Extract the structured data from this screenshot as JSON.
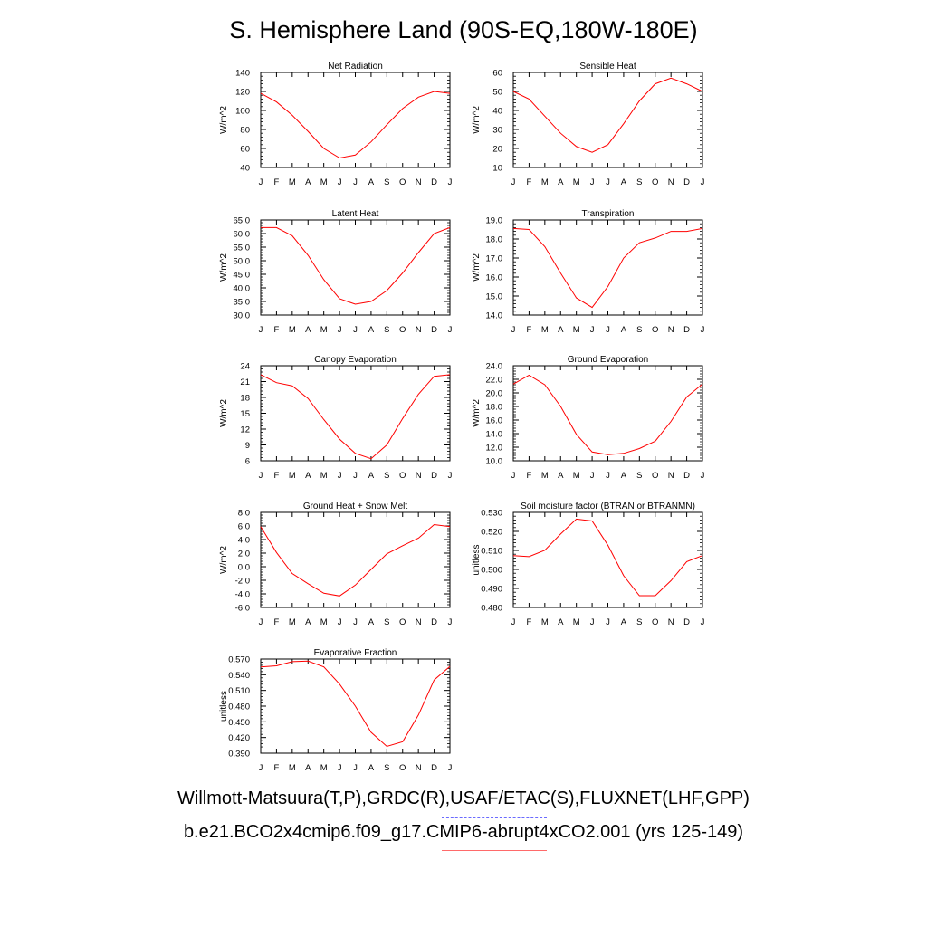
{
  "title": "S. Hemisphere Land (90S-EQ,180W-180E)",
  "legend": {
    "obs_label": "Willmott-Matsuura(T,P),GRDC(R),USAF/ETAC(S),FLUXNET(LHF,GPP)",
    "model_label": "b.e21.BCO2x4cmip6.f09_g17.CMIP6-abrupt4xCO2.001 (yrs 125-149)",
    "obs_color": "#6a6aff",
    "model_color": "#ff0000"
  },
  "chart_data": [
    {
      "type": "line",
      "title": "Net Radiation",
      "ylabel": "W/m^2",
      "categories": [
        "J",
        "F",
        "M",
        "A",
        "M",
        "J",
        "J",
        "A",
        "S",
        "O",
        "N",
        "D",
        "J"
      ],
      "ylim": [
        40,
        140
      ],
      "yticks": [
        "40",
        "60",
        "80",
        "100",
        "120",
        "140"
      ],
      "series": [
        {
          "name": "model",
          "values": [
            118,
            109,
            95,
            78,
            60,
            50,
            53,
            67,
            85,
            102,
            114,
            120,
            118
          ]
        }
      ]
    },
    {
      "type": "line",
      "title": "Sensible Heat",
      "ylabel": "W/m^2",
      "categories": [
        "J",
        "F",
        "M",
        "A",
        "M",
        "J",
        "J",
        "A",
        "S",
        "O",
        "N",
        "D",
        "J"
      ],
      "ylim": [
        10,
        60
      ],
      "yticks": [
        "10",
        "20",
        "30",
        "40",
        "50",
        "60"
      ],
      "series": [
        {
          "name": "model",
          "values": [
            50,
            46,
            37,
            28,
            21,
            18,
            22,
            33,
            45,
            54,
            57,
            54,
            50
          ]
        }
      ]
    },
    {
      "type": "line",
      "title": "Latent Heat",
      "ylabel": "W/m^2",
      "categories": [
        "J",
        "F",
        "M",
        "A",
        "M",
        "J",
        "J",
        "A",
        "S",
        "O",
        "N",
        "D",
        "J"
      ],
      "ylim": [
        30,
        65
      ],
      "yticks": [
        "30.0",
        "35.0",
        "40.0",
        "45.0",
        "50.0",
        "55.0",
        "60.0",
        "65.0"
      ],
      "series": [
        {
          "name": "model",
          "values": [
            62.2,
            62.2,
            59.2,
            52,
            43,
            36,
            34,
            35,
            39,
            45.5,
            53,
            60,
            62.2
          ]
        }
      ]
    },
    {
      "type": "line",
      "title": "Transpiration",
      "ylabel": "W/m^2",
      "categories": [
        "J",
        "F",
        "M",
        "A",
        "M",
        "J",
        "J",
        "A",
        "S",
        "O",
        "N",
        "D",
        "J"
      ],
      "ylim": [
        14,
        19
      ],
      "yticks": [
        "14.0",
        "15.0",
        "16.0",
        "17.0",
        "18.0",
        "19.0"
      ],
      "series": [
        {
          "name": "model",
          "values": [
            18.55,
            18.5,
            17.6,
            16.2,
            14.9,
            14.4,
            15.5,
            17.0,
            17.8,
            18.05,
            18.4,
            18.4,
            18.55
          ]
        }
      ]
    },
    {
      "type": "line",
      "title": "Canopy Evaporation",
      "ylabel": "W/m^2",
      "categories": [
        "J",
        "F",
        "M",
        "A",
        "M",
        "J",
        "J",
        "A",
        "S",
        "O",
        "N",
        "D",
        "J"
      ],
      "ylim": [
        6,
        24
      ],
      "yticks": [
        "6",
        "9",
        "12",
        "15",
        "18",
        "21",
        "24"
      ],
      "series": [
        {
          "name": "model",
          "values": [
            22.3,
            20.8,
            20.2,
            17.8,
            13.8,
            10.1,
            7.4,
            6.4,
            9.0,
            14.0,
            18.6,
            22.0,
            22.3
          ]
        }
      ]
    },
    {
      "type": "line",
      "title": "Ground Evaporation",
      "ylabel": "W/m^2",
      "categories": [
        "J",
        "F",
        "M",
        "A",
        "M",
        "J",
        "J",
        "A",
        "S",
        "O",
        "N",
        "D",
        "J"
      ],
      "ylim": [
        10,
        24
      ],
      "yticks": [
        "10.0",
        "12.0",
        "14.0",
        "16.0",
        "18.0",
        "20.0",
        "22.0",
        "24.0"
      ],
      "series": [
        {
          "name": "model",
          "values": [
            21.3,
            22.6,
            21.2,
            18.0,
            13.9,
            11.3,
            10.9,
            11.1,
            11.8,
            12.9,
            15.8,
            19.4,
            21.3
          ]
        }
      ]
    },
    {
      "type": "line",
      "title": "Ground Heat + Snow Melt",
      "ylabel": "W/m^2",
      "categories": [
        "J",
        "F",
        "M",
        "A",
        "M",
        "J",
        "J",
        "A",
        "S",
        "O",
        "N",
        "D",
        "J"
      ],
      "ylim": [
        -6,
        8
      ],
      "yticks": [
        "-6.0",
        "-4.0",
        "-2.0",
        "0.0",
        "2.0",
        "4.0",
        "6.0",
        "8.0"
      ],
      "series": [
        {
          "name": "model",
          "values": [
            5.9,
            2.1,
            -1.0,
            -2.5,
            -3.9,
            -4.3,
            -2.7,
            -0.4,
            1.9,
            3.1,
            4.2,
            6.2,
            5.9
          ]
        }
      ]
    },
    {
      "type": "line",
      "title": "Soil moisture factor (BTRAN or BTRANMN)",
      "ylabel": "unitless",
      "categories": [
        "J",
        "F",
        "M",
        "A",
        "M",
        "J",
        "J",
        "A",
        "S",
        "O",
        "N",
        "D",
        "J"
      ],
      "ylim": [
        0.48,
        0.53
      ],
      "yticks": [
        "0.480",
        "0.490",
        "0.500",
        "0.510",
        "0.520",
        "0.530"
      ],
      "series": [
        {
          "name": "model",
          "values": [
            0.5073,
            0.5067,
            0.5101,
            0.5186,
            0.5265,
            0.5255,
            0.5127,
            0.4967,
            0.4862,
            0.4862,
            0.4941,
            0.5041,
            0.5073
          ]
        }
      ]
    },
    {
      "type": "line",
      "title": "Evaporative Fraction",
      "ylabel": "unitless",
      "categories": [
        "J",
        "F",
        "M",
        "A",
        "M",
        "J",
        "J",
        "A",
        "S",
        "O",
        "N",
        "D",
        "J"
      ],
      "ylim": [
        0.39,
        0.57
      ],
      "yticks": [
        "0.390",
        "0.420",
        "0.450",
        "0.480",
        "0.510",
        "0.540",
        "0.570"
      ],
      "series": [
        {
          "name": "model",
          "values": [
            0.555,
            0.557,
            0.565,
            0.566,
            0.555,
            0.522,
            0.48,
            0.43,
            0.403,
            0.412,
            0.463,
            0.53,
            0.556
          ]
        }
      ]
    }
  ]
}
